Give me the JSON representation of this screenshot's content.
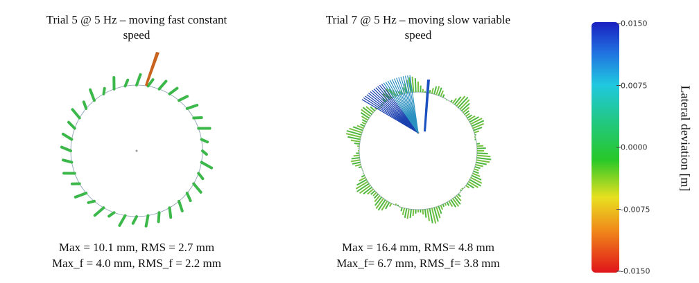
{
  "panels": [
    {
      "title": "Trial 5 @ 5 Hz – moving fast constant speed",
      "stats": [
        "Max = 10.1 mm, RMS = 2.7 mm",
        "Max_f = 4.0 mm, RMS_f = 2.2 mm"
      ]
    },
    {
      "title": "Trial 7 @ 5 Hz – moving slow variable speed",
      "stats": [
        "Max = 16.4 mm, RMS= 4.8 mm",
        "Max_f= 6.7 mm, RMS_f= 3.8 mm"
      ]
    }
  ],
  "colorbar": {
    "label": "Lateral deviation [m]",
    "lim": [
      -0.015,
      0.015
    ],
    "ticks": [
      {
        "value": 0.015,
        "label": "0.0150"
      },
      {
        "value": 0.0075,
        "label": "0.0075"
      },
      {
        "value": 0,
        "label": "0.0000"
      },
      {
        "value": -0.0075,
        "label": "-0.0075"
      },
      {
        "value": -0.015,
        "label": "-0.0150"
      }
    ]
  }
}
